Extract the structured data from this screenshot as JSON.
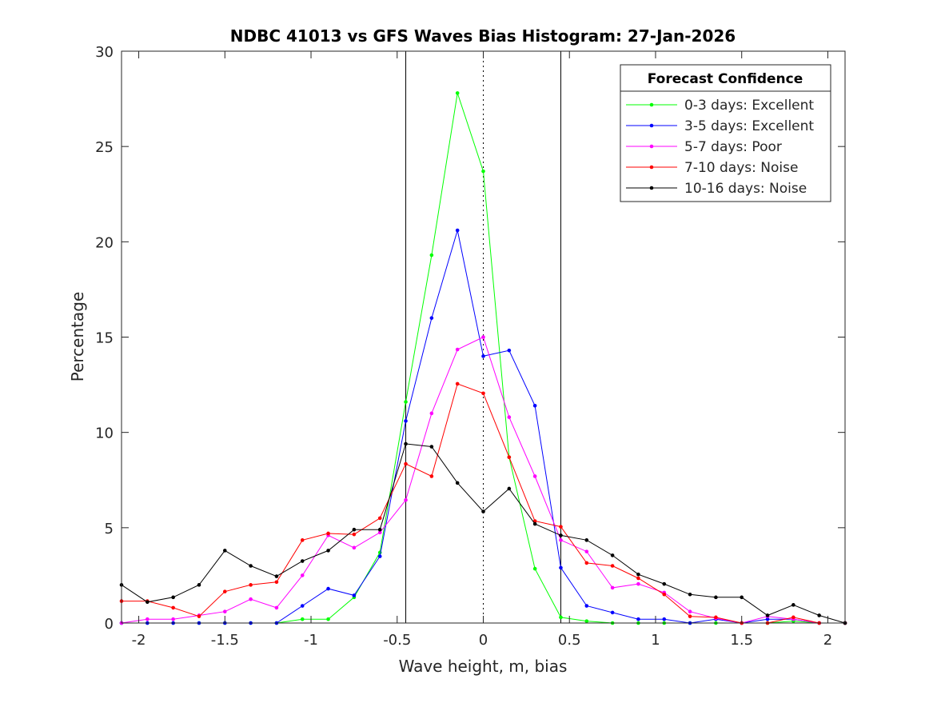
{
  "chart_data": {
    "type": "line",
    "title": "NDBC 41013 vs GFS Waves Bias Histogram: 27-Jan-2026",
    "xlabel": "Wave height, m, bias",
    "ylabel": "Percentage",
    "xlim": [
      -2.1,
      2.1
    ],
    "ylim": [
      0,
      30
    ],
    "xticks": [
      -2,
      -1.5,
      -1,
      -0.5,
      0,
      0.5,
      1,
      1.5,
      2
    ],
    "xtick_labels": [
      "-2",
      "-1.5",
      "-1",
      "-0.5",
      "0",
      "0.5",
      "1",
      "1.5",
      "2"
    ],
    "yticks": [
      0,
      5,
      10,
      15,
      20,
      25,
      30
    ],
    "ytick_labels": [
      "0",
      "5",
      "10",
      "15",
      "20",
      "25",
      "30"
    ],
    "grid": false,
    "reference_lines": [
      {
        "x": -0.45,
        "style": "solid"
      },
      {
        "x": 0,
        "style": "dotted"
      },
      {
        "x": 0.45,
        "style": "solid"
      }
    ],
    "legend": {
      "title": "Forecast Confidence",
      "placement": "top-right"
    },
    "x": [
      -2.1,
      -1.95,
      -1.8,
      -1.65,
      -1.5,
      -1.35,
      -1.2,
      -1.05,
      -0.9,
      -0.75,
      -0.6,
      -0.45,
      -0.3,
      -0.15,
      0,
      0.15,
      0.3,
      0.45,
      0.6,
      0.75,
      0.9,
      1.05,
      1.2,
      1.35,
      1.5,
      1.65,
      1.8,
      1.95,
      2.1
    ],
    "series": [
      {
        "name": "0-3 days: Excellent",
        "color": "#00ff00",
        "values": [
          0,
          0,
          0,
          0,
          0,
          0,
          0,
          0.2,
          0.2,
          1.35,
          3.7,
          11.6,
          19.3,
          27.8,
          23.7,
          8.7,
          2.85,
          0.3,
          0.1,
          0,
          0,
          0,
          0,
          0,
          0,
          0,
          0.1,
          0,
          0
        ]
      },
      {
        "name": "3-5 days: Excellent",
        "color": "#0000ff",
        "values": [
          0,
          0,
          0,
          0,
          0,
          0,
          0,
          0.9,
          1.8,
          1.45,
          3.5,
          10.6,
          16,
          20.6,
          14,
          14.3,
          11.4,
          2.9,
          0.9,
          0.55,
          0.2,
          0.2,
          0,
          0.2,
          0,
          0.2,
          0.2,
          0,
          0
        ]
      },
      {
        "name": "5-7 days: Poor",
        "color": "#ff00ff",
        "values": [
          0,
          0.2,
          0.2,
          0.4,
          0.6,
          1.25,
          0.8,
          2.5,
          4.6,
          3.95,
          4.75,
          6.45,
          11,
          14.35,
          15,
          10.8,
          7.7,
          4.35,
          3.75,
          1.85,
          2.05,
          1.6,
          0.6,
          0.25,
          0,
          0.35,
          0.2,
          0,
          0
        ]
      },
      {
        "name": "7-10 days: Noise",
        "color": "#ff0000",
        "values": [
          1.15,
          1.15,
          0.8,
          0.35,
          1.65,
          2,
          2.15,
          4.35,
          4.7,
          4.65,
          5.5,
          8.35,
          7.7,
          12.55,
          12.05,
          8.7,
          5.35,
          5.05,
          3.15,
          3,
          2.35,
          1.5,
          0.35,
          0.3,
          0,
          0,
          0.3,
          0,
          0
        ]
      },
      {
        "name": "10-16 days: Noise",
        "color": "#000000",
        "values": [
          2,
          1.1,
          1.35,
          2,
          3.8,
          3,
          2.45,
          3.25,
          3.8,
          4.9,
          4.9,
          9.4,
          9.25,
          7.35,
          5.85,
          7.05,
          5.2,
          4.6,
          4.35,
          3.55,
          2.55,
          2.05,
          1.5,
          1.35,
          1.35,
          0.4,
          0.95,
          0.4,
          0
        ]
      }
    ]
  }
}
